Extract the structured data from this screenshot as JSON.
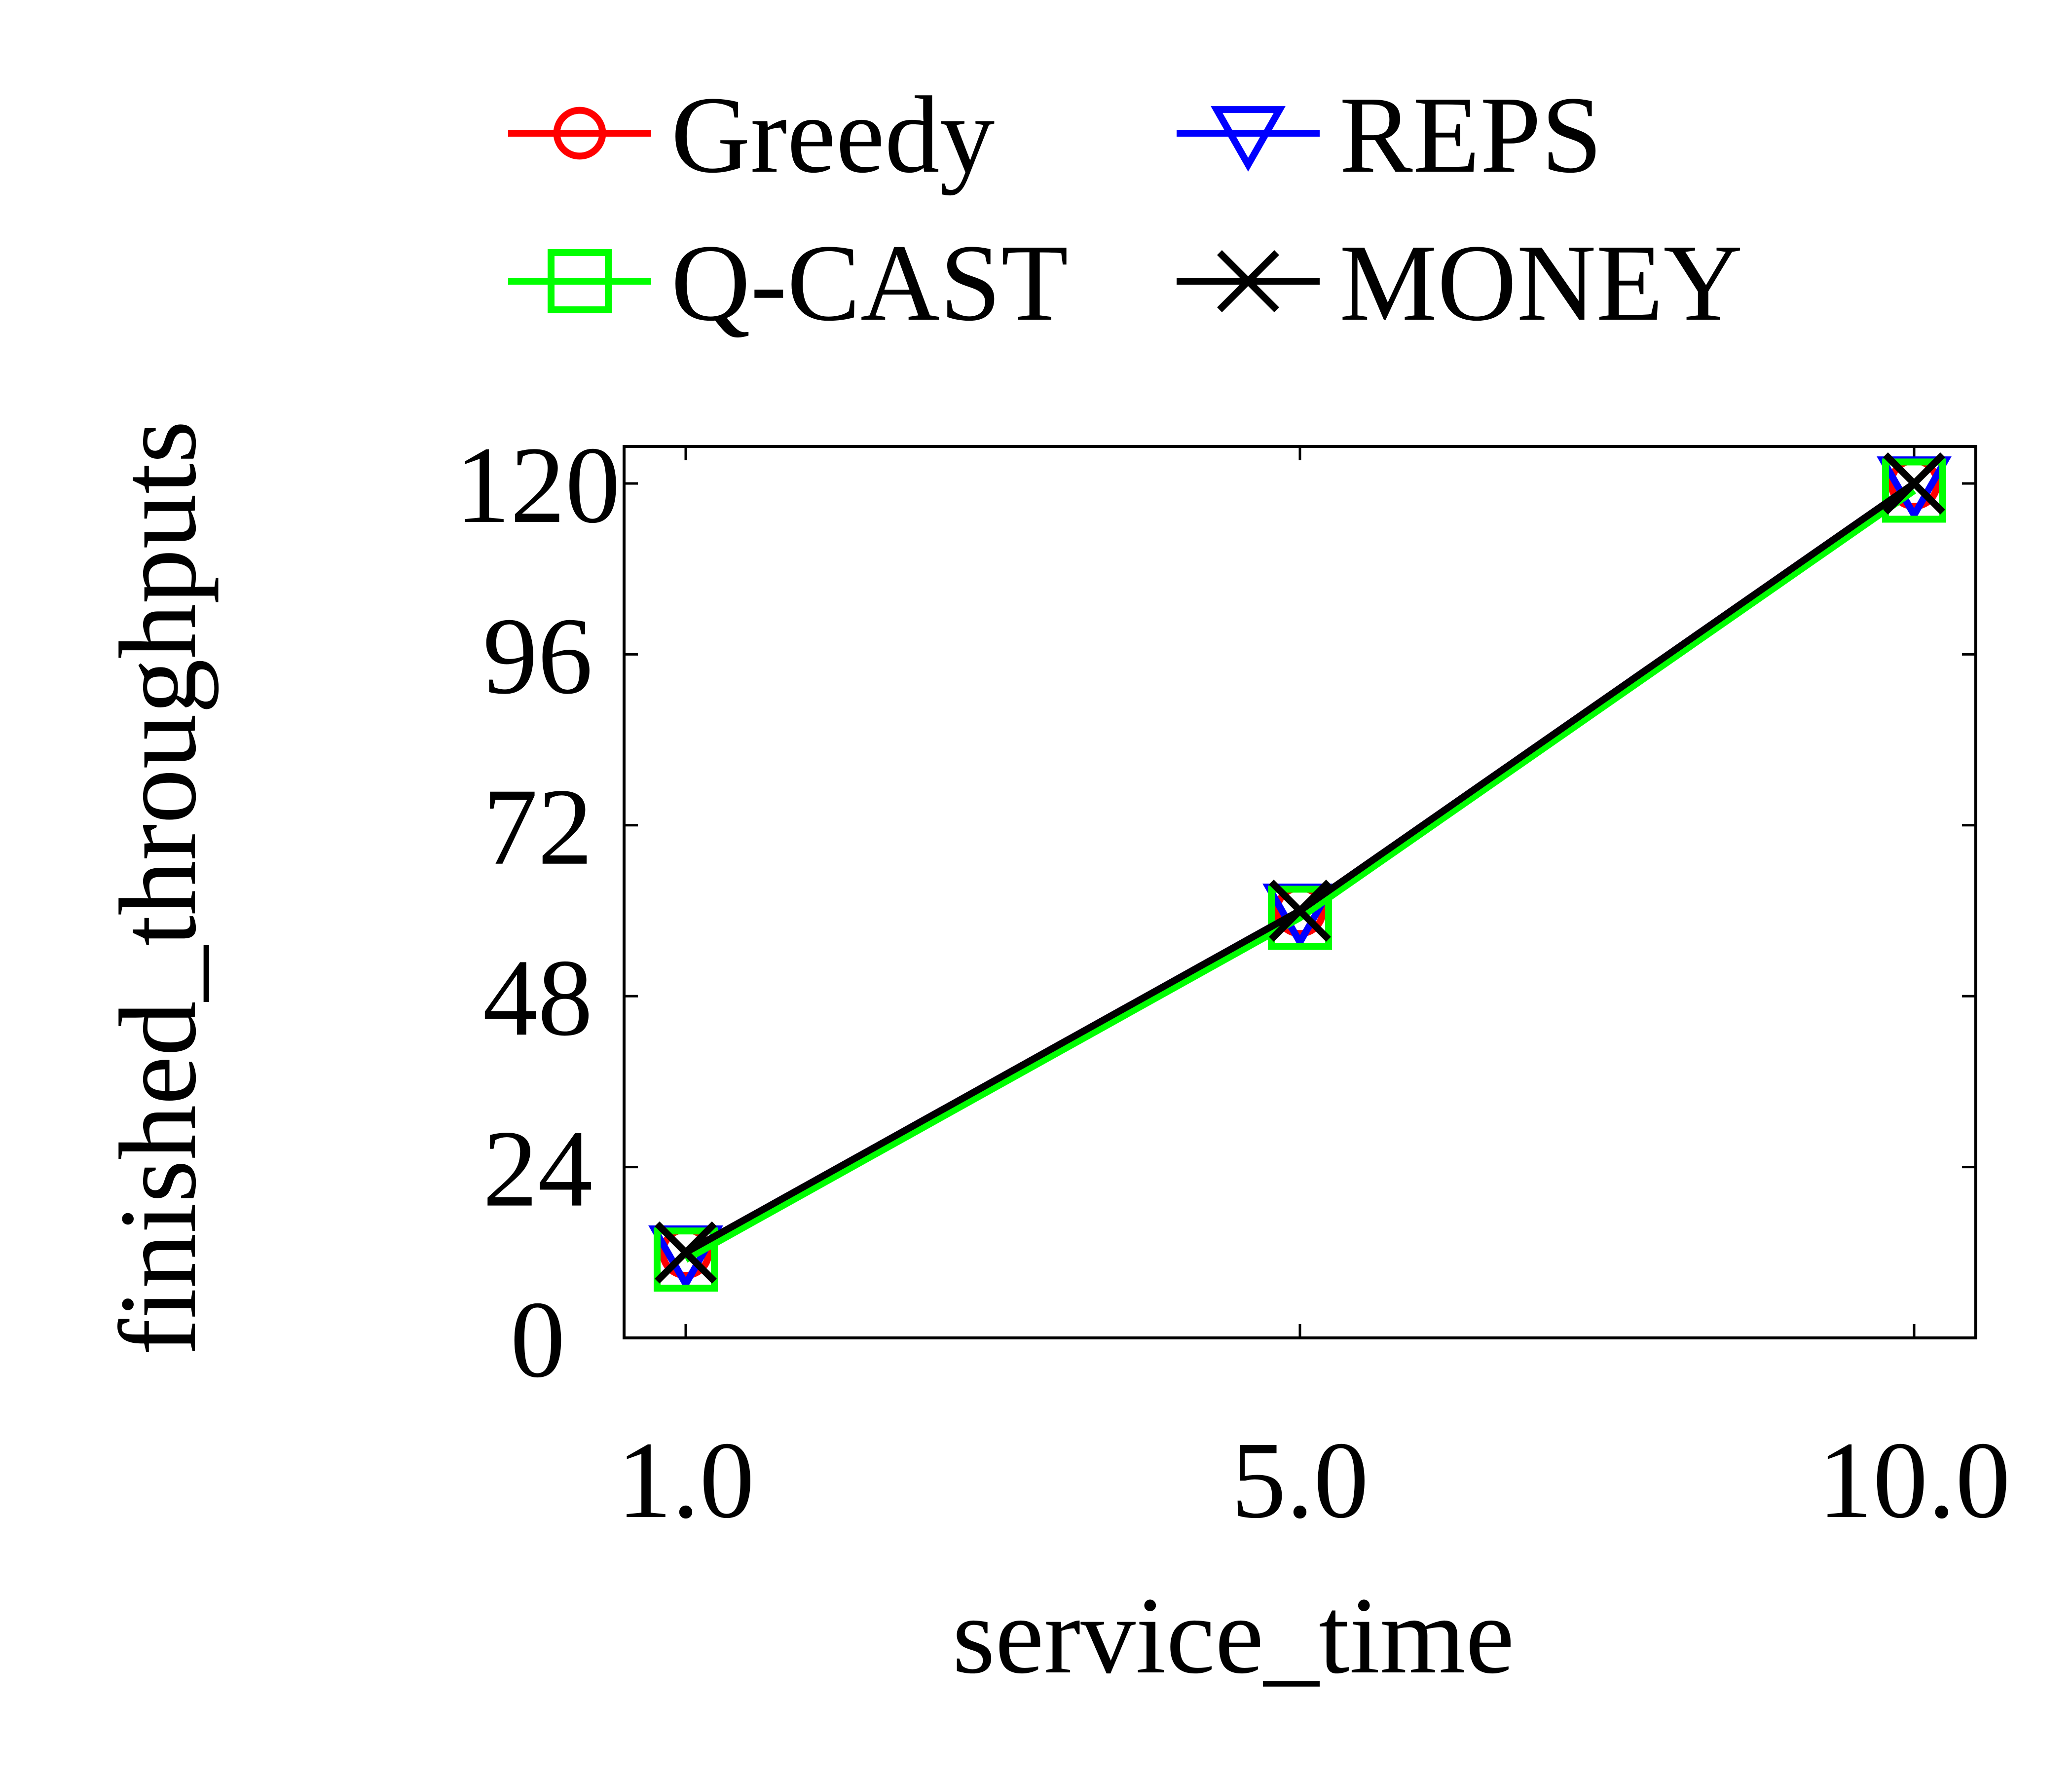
{
  "chart_data": {
    "type": "line",
    "title": "",
    "xlabel": "service_time",
    "ylabel": "finished_throughputs",
    "x": [
      1.0,
      5.0,
      10.0
    ],
    "x_tick_labels": [
      "1.0",
      "5.0",
      "10.0"
    ],
    "y_ticks": [
      0,
      24,
      48,
      72,
      96,
      120
    ],
    "y_tick_labels": [
      "0",
      "24",
      "48",
      "72",
      "96",
      "120"
    ],
    "ylim": [
      0,
      120
    ],
    "grid": false,
    "legend_position": "top",
    "series": [
      {
        "name": "Greedy",
        "values": [
          12,
          60,
          120
        ],
        "color": "#ff0000",
        "marker": "circle"
      },
      {
        "name": "REPS",
        "values": [
          12,
          60,
          120
        ],
        "color": "#0000ff",
        "marker": "triangle-down"
      },
      {
        "name": "Q-CAST",
        "values": [
          11,
          59,
          119
        ],
        "color": "#00ff00",
        "marker": "square"
      },
      {
        "name": "MONEY",
        "values": [
          12,
          60,
          120
        ],
        "color": "#000000",
        "marker": "x"
      }
    ]
  }
}
